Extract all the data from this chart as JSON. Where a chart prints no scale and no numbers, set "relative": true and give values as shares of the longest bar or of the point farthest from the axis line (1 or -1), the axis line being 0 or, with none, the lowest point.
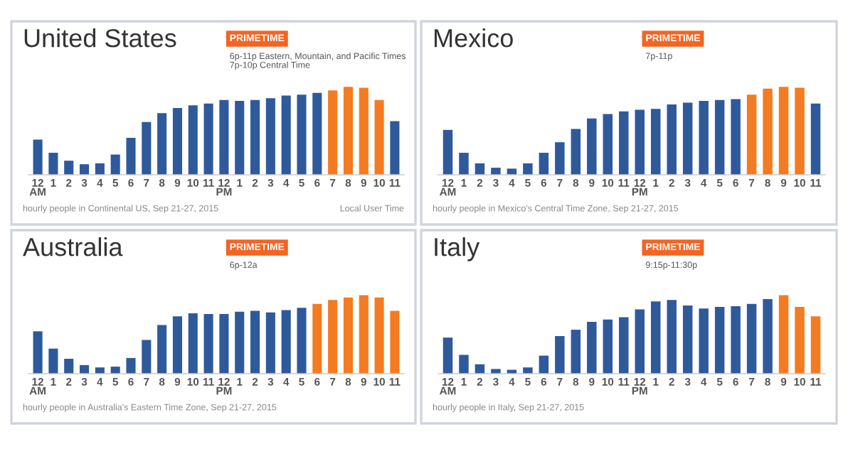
{
  "chart_data": [
    {
      "type": "bar",
      "title": "United States",
      "relative": true,
      "categories": [
        "12\nAM",
        "1",
        "2",
        "3",
        "4",
        "5",
        "6",
        "7",
        "8",
        "9",
        "10",
        "11",
        "12\nPM",
        "1",
        "2",
        "3",
        "4",
        "5",
        "6",
        "7",
        "8",
        "9",
        "10",
        "11"
      ],
      "values": [
        0.4,
        0.25,
        0.16,
        0.12,
        0.13,
        0.23,
        0.42,
        0.6,
        0.7,
        0.76,
        0.79,
        0.81,
        0.85,
        0.84,
        0.85,
        0.87,
        0.9,
        0.91,
        0.93,
        0.96,
        1,
        0.99,
        0.85,
        0.61
      ],
      "colors": [
        "#2e5a9c",
        "#2e5a9c",
        "#2e5a9c",
        "#2e5a9c",
        "#2e5a9c",
        "#2e5a9c",
        "#2e5a9c",
        "#2e5a9c",
        "#2e5a9c",
        "#2e5a9c",
        "#2e5a9c",
        "#2e5a9c",
        "#2e5a9c",
        "#2e5a9c",
        "#2e5a9c",
        "#2e5a9c",
        "#2e5a9c",
        "#2e5a9c",
        "#2e5a9c",
        "#f47b20",
        "#f47b20",
        "#f47b20",
        "#f47b20",
        "#2e5a9c"
      ],
      "annotations": [
        "PRIMETIME",
        "6p-11p Eastern, Mountain, and Pacific Times\n7p-10p Central Time",
        "hourly people in Continental US, Sep 21-27, 2015",
        "Local User Time"
      ]
    },
    {
      "type": "bar",
      "title": "Mexico",
      "relative": true,
      "categories": [
        "12\nAM",
        "1",
        "2",
        "3",
        "4",
        "5",
        "6",
        "7",
        "8",
        "9",
        "10",
        "11",
        "12\nPM",
        "1",
        "2",
        "3",
        "4",
        "5",
        "6",
        "7",
        "8",
        "9",
        "10",
        "11"
      ],
      "values": [
        0.51,
        0.25,
        0.13,
        0.08,
        0.07,
        0.13,
        0.25,
        0.37,
        0.52,
        0.64,
        0.69,
        0.72,
        0.74,
        0.75,
        0.8,
        0.82,
        0.84,
        0.85,
        0.86,
        0.91,
        0.98,
        1,
        0.99,
        0.81
      ],
      "colors": [
        "#2e5a9c",
        "#2e5a9c",
        "#2e5a9c",
        "#2e5a9c",
        "#2e5a9c",
        "#2e5a9c",
        "#2e5a9c",
        "#2e5a9c",
        "#2e5a9c",
        "#2e5a9c",
        "#2e5a9c",
        "#2e5a9c",
        "#2e5a9c",
        "#2e5a9c",
        "#2e5a9c",
        "#2e5a9c",
        "#2e5a9c",
        "#2e5a9c",
        "#2e5a9c",
        "#f47b20",
        "#f47b20",
        "#f47b20",
        "#f47b20",
        "#2e5a9c"
      ],
      "annotations": [
        "PRIMETIME",
        "7p-11p",
        "hourly people in Mexico's Central Time Zone, Sep 21-27, 2015"
      ]
    },
    {
      "type": "bar",
      "title": "Australia",
      "relative": true,
      "categories": [
        "12\nAM",
        "1",
        "2",
        "3",
        "4",
        "5",
        "6",
        "7",
        "8",
        "9",
        "10",
        "11",
        "12\nPM",
        "1",
        "2",
        "3",
        "4",
        "5",
        "6",
        "7",
        "8",
        "9",
        "10",
        "11"
      ],
      "values": [
        0.54,
        0.32,
        0.19,
        0.11,
        0.08,
        0.09,
        0.2,
        0.43,
        0.62,
        0.73,
        0.77,
        0.76,
        0.76,
        0.79,
        0.8,
        0.78,
        0.81,
        0.84,
        0.89,
        0.94,
        0.97,
        1,
        0.97,
        0.8
      ],
      "colors": [
        "#2e5a9c",
        "#2e5a9c",
        "#2e5a9c",
        "#2e5a9c",
        "#2e5a9c",
        "#2e5a9c",
        "#2e5a9c",
        "#2e5a9c",
        "#2e5a9c",
        "#2e5a9c",
        "#2e5a9c",
        "#2e5a9c",
        "#2e5a9c",
        "#2e5a9c",
        "#2e5a9c",
        "#2e5a9c",
        "#2e5a9c",
        "#2e5a9c",
        "#f47b20",
        "#f47b20",
        "#f47b20",
        "#f47b20",
        "#f47b20",
        "#f47b20"
      ],
      "annotations": [
        "PRIMETIME",
        "6p-12a",
        "hourly people in Australia's Eastern Time Zone, Sep 21-27, 2015"
      ]
    },
    {
      "type": "bar",
      "title": "Italy",
      "relative": true,
      "categories": [
        "12\nAM",
        "1",
        "2",
        "3",
        "4",
        "5",
        "6",
        "7",
        "8",
        "9",
        "10",
        "11",
        "12\nPM",
        "1",
        "2",
        "3",
        "4",
        "5",
        "6",
        "7",
        "8",
        "9",
        "10",
        "11"
      ],
      "values": [
        0.46,
        0.24,
        0.12,
        0.06,
        0.05,
        0.08,
        0.23,
        0.48,
        0.56,
        0.66,
        0.69,
        0.72,
        0.82,
        0.92,
        0.94,
        0.87,
        0.83,
        0.85,
        0.86,
        0.89,
        0.95,
        1,
        0.85,
        0.73
      ],
      "colors": [
        "#2e5a9c",
        "#2e5a9c",
        "#2e5a9c",
        "#2e5a9c",
        "#2e5a9c",
        "#2e5a9c",
        "#2e5a9c",
        "#2e5a9c",
        "#2e5a9c",
        "#2e5a9c",
        "#2e5a9c",
        "#2e5a9c",
        "#2e5a9c",
        "#2e5a9c",
        "#2e5a9c",
        "#2e5a9c",
        "#2e5a9c",
        "#2e5a9c",
        "#2e5a9c",
        "#2e5a9c",
        "#2e5a9c",
        "#f47b20",
        "#f47b20",
        "#f47b20"
      ],
      "annotations": [
        "PRIMETIME",
        "9:15p-11:30p",
        "hourly people in Italy, Sep 21-27, 2015"
      ]
    }
  ]
}
